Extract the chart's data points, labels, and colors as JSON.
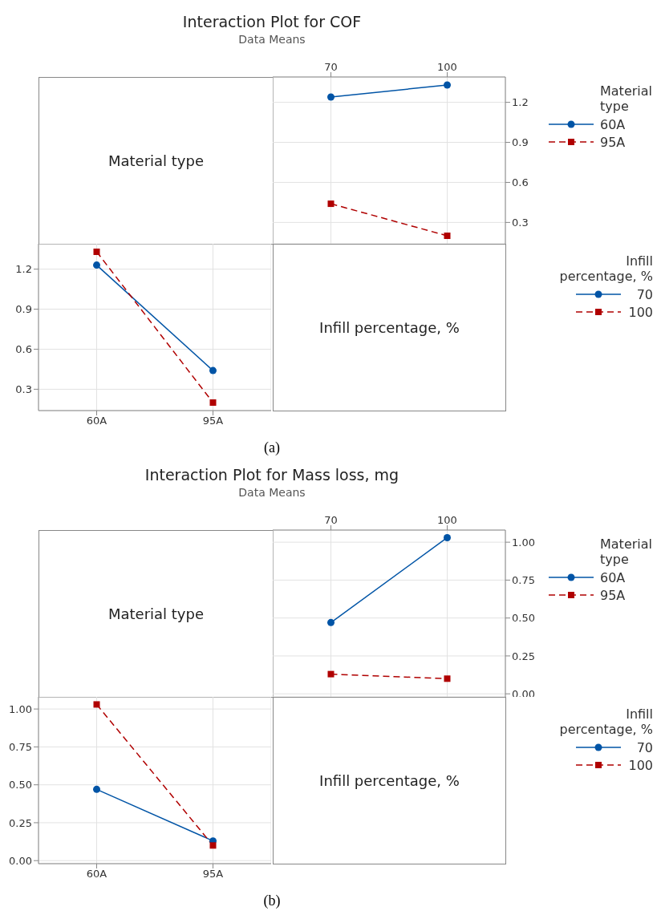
{
  "chart_data": [
    {
      "type": "line",
      "title": "Interaction Plot for COF",
      "subtitle": "Data Means",
      "categories": [
        "70",
        "100"
      ],
      "legend": "right",
      "legend_title": "Material type",
      "ylim": [
        0.14,
        1.39
      ],
      "yticks": [
        0.3,
        0.6,
        0.9,
        1.2
      ],
      "grid": true,
      "annotations": [
        "Material type"
      ],
      "series": [
        {
          "name": "60A",
          "color": "#0054a6",
          "values": [
            1.24,
            1.33
          ],
          "marker": "circle",
          "line_style": "solid"
        },
        {
          "name": "95A",
          "color": "#b00000",
          "values": [
            0.44,
            0.2
          ],
          "marker": "square",
          "line_style": "dashed"
        }
      ]
    },
    {
      "type": "line",
      "categories": [
        "60A",
        "95A"
      ],
      "legend": "right",
      "legend_title": "Infill percentage, %",
      "ylim": [
        0.14,
        1.39
      ],
      "yticks": [
        0.3,
        0.6,
        0.9,
        1.2
      ],
      "grid": true,
      "annotations": [
        "Infill percentage, %",
        "(a)"
      ],
      "series": [
        {
          "name": "70",
          "color": "#0054a6",
          "values": [
            1.23,
            0.44
          ],
          "marker": "circle",
          "line_style": "solid"
        },
        {
          "name": "100",
          "color": "#b00000",
          "values": [
            1.33,
            0.2
          ],
          "marker": "square",
          "line_style": "dashed"
        }
      ]
    },
    {
      "type": "line",
      "title": "Interaction Plot for Mass loss, mg",
      "subtitle": "Data Means",
      "categories": [
        "70",
        "100"
      ],
      "legend": "right",
      "legend_title": "Material type",
      "ylim": [
        -0.02,
        1.08
      ],
      "yticks": [
        {
          "value": 0,
          "label": "0.00"
        },
        {
          "value": 0.25,
          "label": "0.25"
        },
        {
          "value": 0.5,
          "label": "0.50"
        },
        {
          "value": 0.75,
          "label": "0.75"
        },
        {
          "value": 1,
          "label": "1.00"
        }
      ],
      "grid": true,
      "annotations": [
        "Material type"
      ],
      "series": [
        {
          "name": "60A",
          "color": "#0054a6",
          "values": [
            0.47,
            1.03
          ],
          "marker": "circle",
          "line_style": "solid"
        },
        {
          "name": "95A",
          "color": "#b00000",
          "values": [
            0.13,
            0.1
          ],
          "marker": "square",
          "line_style": "dashed"
        }
      ]
    },
    {
      "type": "line",
      "categories": [
        "60A",
        "95A"
      ],
      "legend": "right",
      "legend_title": "Infill percentage, %",
      "ylim": [
        -0.02,
        1.08
      ],
      "yticks": [
        {
          "value": 0,
          "label": "0.00"
        },
        {
          "value": 0.25,
          "label": "0.25"
        },
        {
          "value": 0.5,
          "label": "0.50"
        },
        {
          "value": 0.75,
          "label": "0.75"
        },
        {
          "value": 1,
          "label": "1.00"
        }
      ],
      "grid": true,
      "annotations": [
        "Infill percentage, %",
        "(b)"
      ],
      "series": [
        {
          "name": "70",
          "color": "#0054a6",
          "values": [
            0.47,
            0.13
          ],
          "marker": "circle",
          "line_style": "solid"
        },
        {
          "name": "100",
          "color": "#b00000",
          "values": [
            1.03,
            0.1
          ],
          "marker": "square",
          "line_style": "dashed"
        }
      ]
    }
  ]
}
